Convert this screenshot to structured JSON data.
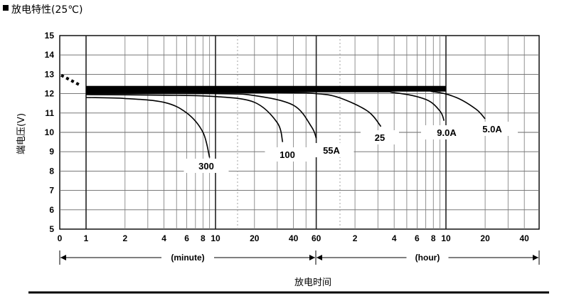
{
  "title": "放电特性(25℃)",
  "footer_label": "放电时间",
  "chart_data": {
    "type": "line",
    "title": "放电特性(25℃)",
    "xlabel": "放电时间",
    "ylabel": "端电压(V)",
    "ylim": [
      5,
      15
    ],
    "yticks": [
      "5",
      "6",
      "7",
      "8",
      "9",
      "10",
      "11",
      "12",
      "13",
      "14",
      "15"
    ],
    "x_scale": "log (minutes 1–60, then hours 1–40)",
    "xticks": [
      "0",
      "1",
      "2",
      "4",
      "6",
      "8",
      "10",
      "20",
      "40",
      "60",
      "2",
      "4",
      "6",
      "8",
      "10",
      "20",
      "40"
    ],
    "x_units": {
      "minute": "(minute)",
      "hour": "(hour)"
    },
    "grid": true,
    "series": [
      {
        "name": "300",
        "points": [
          [
            1,
            11.8
          ],
          [
            2,
            11.75
          ],
          [
            4,
            11.55
          ],
          [
            6,
            11.0
          ],
          [
            8,
            10.0
          ],
          [
            9,
            8.7
          ]
        ]
      },
      {
        "name": "100",
        "points": [
          [
            1,
            11.95
          ],
          [
            4,
            11.92
          ],
          [
            10,
            11.85
          ],
          [
            20,
            11.55
          ],
          [
            30,
            10.5
          ],
          [
            33,
            9.5
          ]
        ]
      },
      {
        "name": "55A",
        "points": [
          [
            1,
            12.0
          ],
          [
            10,
            12.0
          ],
          [
            20,
            11.9
          ],
          [
            40,
            11.4
          ],
          [
            55,
            10.3
          ],
          [
            60,
            9.7
          ]
        ]
      },
      {
        "name": "25",
        "points": [
          [
            1,
            12.05
          ],
          [
            30,
            12.05
          ],
          [
            60,
            12.0
          ],
          [
            90,
            11.8
          ],
          [
            150,
            11.1
          ],
          [
            190,
            10.3
          ]
        ]
      },
      {
        "name": "9.0A",
        "points": [
          [
            1,
            12.1
          ],
          [
            120,
            12.1
          ],
          [
            240,
            12.05
          ],
          [
            420,
            11.7
          ],
          [
            540,
            11.1
          ],
          [
            580,
            10.6
          ]
        ]
      },
      {
        "name": "5.0A",
        "points": [
          [
            1,
            12.15
          ],
          [
            240,
            12.15
          ],
          [
            480,
            12.1
          ],
          [
            720,
            11.8
          ],
          [
            1020,
            11.2
          ],
          [
            1200,
            10.7
          ]
        ]
      }
    ]
  }
}
